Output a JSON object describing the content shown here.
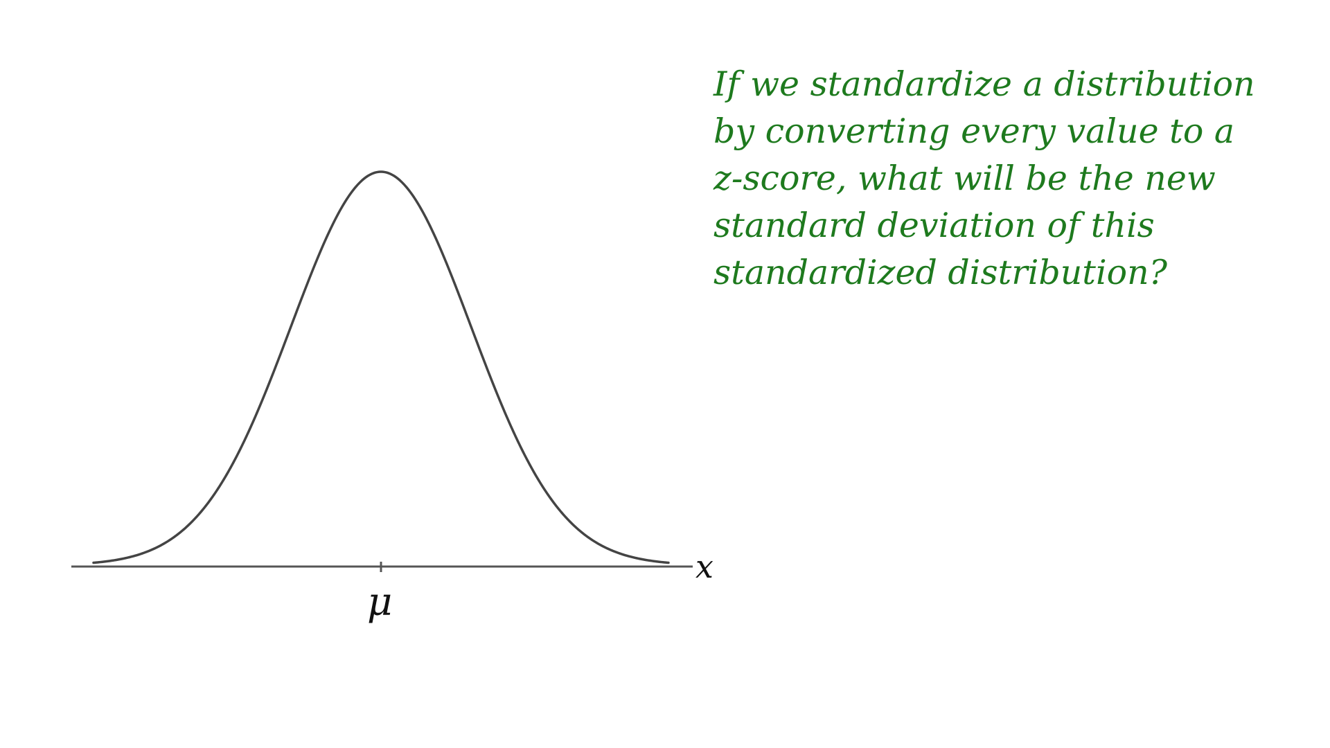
{
  "question": {
    "lines": [
      "If we standardize a distribution",
      "by converting every value to a",
      "z-score, what will be the new",
      "standard deviation of this",
      "standardized distribution?"
    ],
    "color": "#1e7a1e"
  },
  "diagram": {
    "curve": "normal distribution",
    "curve_color": "#444444",
    "axis_color": "#555555",
    "axis_variable_label": "x",
    "center_tick_label": "μ"
  }
}
